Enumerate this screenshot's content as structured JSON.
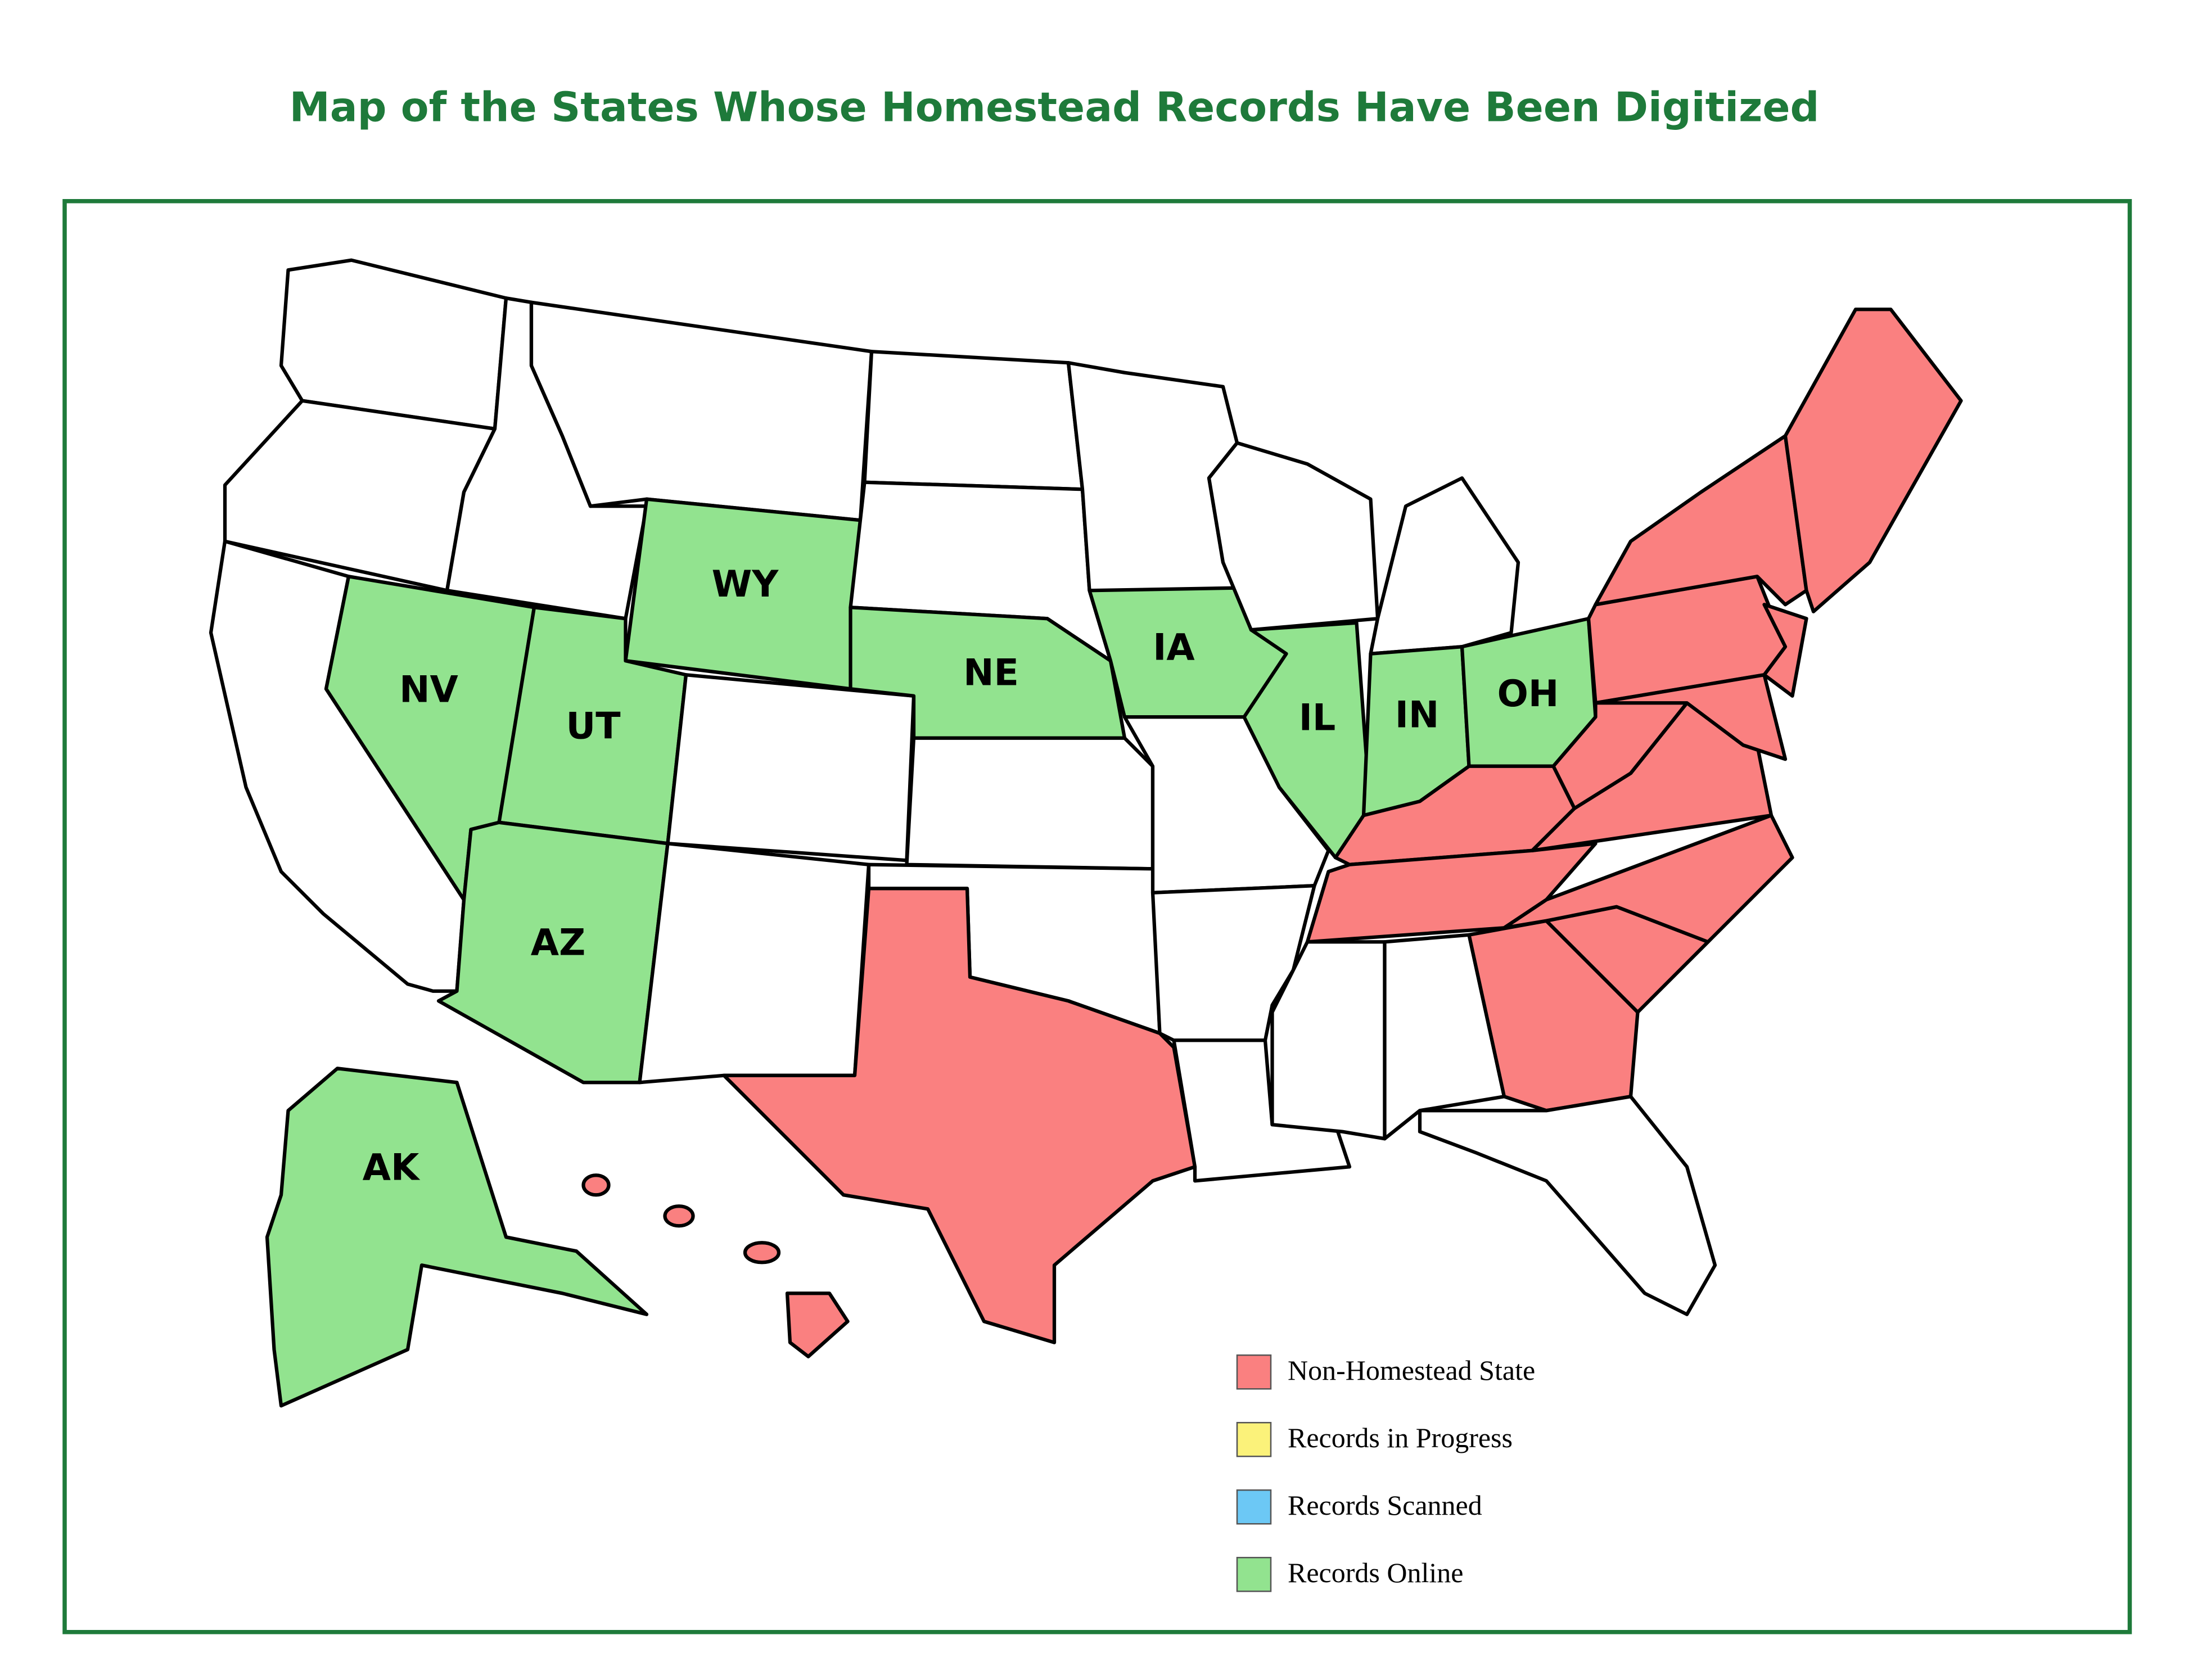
{
  "title": "Map of the States Whose Homestead Records Have Been Digitized",
  "state_labels": [
    "NV",
    "UT",
    "WY",
    "NE",
    "IA",
    "IL",
    "IN",
    "OH",
    "AZ",
    "AK"
  ],
  "legend": [
    "Non-Homestead State",
    "Records in Progress",
    "Records Scanned",
    "Records Online"
  ]
}
